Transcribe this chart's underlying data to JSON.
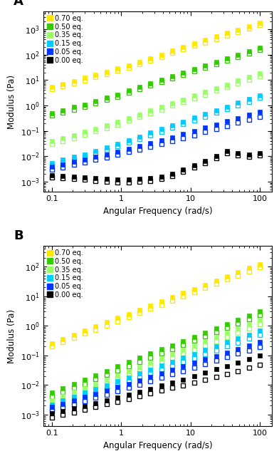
{
  "colors": {
    "0.70": "#FFE800",
    "0.50": "#33CC00",
    "0.35": "#99FF66",
    "0.15": "#00CCFF",
    "0.05": "#0033FF",
    "0.00": "#000000"
  },
  "labels": [
    "0.70 eq.",
    "0.50 eq.",
    "0.35 eq.",
    "0.15 eq.",
    "0.05 eq.",
    "0.00 eq."
  ],
  "freq_min": 0.1,
  "freq_max": 100,
  "n_points": 20,
  "panel_A": {
    "title": "A",
    "ylabel": "Modulus (Pa)",
    "xlabel": "Angular Frequency (rad/s)",
    "ylim": [
      0.0004,
      5000
    ],
    "series": {
      "0.70": {
        "G_prime": [
          5.5,
          7.0,
          9.0,
          12,
          16,
          21,
          28,
          38,
          52,
          72,
          100,
          140,
          195,
          270,
          370,
          510,
          700,
          960,
          1300,
          1800
        ],
        "G_dprime": [
          4.5,
          5.8,
          7.5,
          9.8,
          13,
          17,
          23,
          31,
          43,
          60,
          83,
          115,
          160,
          220,
          300,
          415,
          570,
          780,
          1060,
          1450
        ]
      },
      "0.50": {
        "G_prime": [
          0.5,
          0.65,
          0.85,
          1.1,
          1.5,
          2.0,
          2.7,
          3.8,
          5.2,
          7.2,
          10,
          14,
          19.5,
          27,
          38,
          52,
          72,
          100,
          138,
          190
        ],
        "G_dprime": [
          0.4,
          0.52,
          0.68,
          0.9,
          1.22,
          1.65,
          2.2,
          3.1,
          4.3,
          5.9,
          8.2,
          11.5,
          16,
          22,
          31,
          43,
          59,
          82,
          112,
          155
        ]
      },
      "0.35": {
        "G_prime": [
          0.04,
          0.052,
          0.068,
          0.09,
          0.12,
          0.165,
          0.23,
          0.32,
          0.44,
          0.62,
          0.87,
          1.22,
          1.72,
          2.4,
          3.4,
          4.8,
          6.7,
          9.3,
          13,
          18
        ],
        "G_dprime": [
          0.03,
          0.04,
          0.052,
          0.07,
          0.095,
          0.13,
          0.18,
          0.25,
          0.35,
          0.49,
          0.69,
          0.97,
          1.37,
          1.9,
          2.7,
          3.8,
          5.3,
          7.3,
          10,
          14
        ]
      },
      "0.15": {
        "G_prime": [
          0.0055,
          0.0072,
          0.0094,
          0.012,
          0.016,
          0.022,
          0.031,
          0.043,
          0.06,
          0.084,
          0.118,
          0.165,
          0.232,
          0.325,
          0.456,
          0.64,
          0.9,
          1.26,
          1.76,
          2.47
        ],
        "G_dprime": [
          0.0042,
          0.0055,
          0.0072,
          0.0095,
          0.013,
          0.018,
          0.025,
          0.034,
          0.048,
          0.067,
          0.094,
          0.132,
          0.185,
          0.26,
          0.365,
          0.51,
          0.72,
          1.01,
          1.41,
          1.97
        ]
      },
      "0.05": {
        "G_prime": [
          0.0038,
          0.0048,
          0.006,
          0.0075,
          0.0095,
          0.012,
          0.015,
          0.019,
          0.025,
          0.032,
          0.042,
          0.056,
          0.074,
          0.099,
          0.132,
          0.176,
          0.235,
          0.314,
          0.42,
          0.56
        ],
        "G_dprime": [
          0.003,
          0.0037,
          0.0046,
          0.0058,
          0.0073,
          0.0092,
          0.0117,
          0.0148,
          0.0188,
          0.024,
          0.031,
          0.04,
          0.052,
          0.068,
          0.09,
          0.118,
          0.156,
          0.207,
          0.274,
          0.36
        ]
      },
      "0.00": {
        "G_prime": [
          0.0018,
          0.0017,
          0.0016,
          0.00145,
          0.00135,
          0.00128,
          0.00124,
          0.00124,
          0.00128,
          0.0014,
          0.00162,
          0.0021,
          0.003,
          0.0044,
          0.0067,
          0.0105,
          0.0165,
          0.013,
          0.012,
          0.013
        ],
        "G_dprime": [
          0.0015,
          0.0014,
          0.0013,
          0.00118,
          0.00108,
          0.001,
          0.00096,
          0.00096,
          0.001,
          0.0011,
          0.0013,
          0.00168,
          0.0024,
          0.0036,
          0.0055,
          0.0086,
          0.0135,
          0.0107,
          0.0098,
          0.0107
        ]
      }
    }
  },
  "panel_B": {
    "title": "B",
    "ylabel": "Modulus (Pa)",
    "xlabel": "Angular Frequency (rad/s)",
    "ylim": [
      0.0004,
      500
    ],
    "series": {
      "0.70": {
        "G_prime": [
          0.26,
          0.36,
          0.5,
          0.69,
          0.95,
          1.32,
          1.82,
          2.52,
          3.48,
          4.81,
          6.65,
          9.19,
          12.7,
          17.6,
          24.3,
          33.6,
          46.4,
          64.1,
          88.6,
          122.5
        ],
        "G_dprime": [
          0.2,
          0.28,
          0.39,
          0.54,
          0.74,
          1.03,
          1.42,
          1.97,
          2.72,
          3.76,
          5.2,
          7.19,
          9.94,
          13.7,
          19.0,
          26.3,
          36.3,
          50.2,
          69.4,
          95.9
        ]
      },
      "0.50": {
        "G_prime": [
          0.0055,
          0.0077,
          0.0108,
          0.015,
          0.021,
          0.03,
          0.042,
          0.059,
          0.082,
          0.114,
          0.159,
          0.221,
          0.308,
          0.429,
          0.597,
          0.831,
          1.16,
          1.61,
          2.24,
          3.12
        ],
        "G_dprime": [
          0.004,
          0.0057,
          0.008,
          0.011,
          0.016,
          0.022,
          0.031,
          0.043,
          0.06,
          0.084,
          0.117,
          0.163,
          0.227,
          0.316,
          0.44,
          0.612,
          0.852,
          1.186,
          1.651,
          2.3
        ]
      },
      "0.35": {
        "G_prime": [
          0.003,
          0.0041,
          0.0057,
          0.0079,
          0.011,
          0.015,
          0.021,
          0.03,
          0.041,
          0.057,
          0.08,
          0.111,
          0.154,
          0.215,
          0.299,
          0.416,
          0.579,
          0.806,
          1.12,
          1.56
        ],
        "G_dprime": [
          0.0022,
          0.003,
          0.0042,
          0.0058,
          0.0081,
          0.0113,
          0.0157,
          0.022,
          0.03,
          0.042,
          0.059,
          0.082,
          0.114,
          0.158,
          0.22,
          0.307,
          0.426,
          0.593,
          0.825,
          1.15
        ]
      },
      "0.15": {
        "G_prime": [
          0.0022,
          0.003,
          0.004,
          0.0054,
          0.0073,
          0.0099,
          0.0134,
          0.0181,
          0.0245,
          0.033,
          0.045,
          0.061,
          0.082,
          0.111,
          0.151,
          0.204,
          0.276,
          0.374,
          0.506,
          0.685
        ],
        "G_dprime": [
          0.0016,
          0.0021,
          0.0029,
          0.0039,
          0.0053,
          0.0072,
          0.0098,
          0.0132,
          0.0179,
          0.0242,
          0.0328,
          0.044,
          0.06,
          0.081,
          0.11,
          0.149,
          0.201,
          0.272,
          0.368,
          0.498
        ]
      },
      "0.05": {
        "G_prime": [
          0.0018,
          0.0023,
          0.003,
          0.0039,
          0.005,
          0.0065,
          0.0085,
          0.011,
          0.014,
          0.019,
          0.025,
          0.032,
          0.042,
          0.056,
          0.073,
          0.096,
          0.126,
          0.165,
          0.216,
          0.283
        ],
        "G_dprime": [
          0.0013,
          0.0017,
          0.0022,
          0.0028,
          0.0037,
          0.0048,
          0.0062,
          0.008,
          0.0104,
          0.0135,
          0.0176,
          0.023,
          0.03,
          0.039,
          0.051,
          0.066,
          0.087,
          0.114,
          0.149,
          0.196
        ]
      },
      "0.00": {
        "G_prime": [
          0.0011,
          0.0013,
          0.0016,
          0.0019,
          0.0024,
          0.003,
          0.0037,
          0.0047,
          0.0059,
          0.0075,
          0.0095,
          0.012,
          0.015,
          0.02,
          0.026,
          0.034,
          0.044,
          0.058,
          0.076,
          0.099
        ],
        "G_dprime": [
          0.0008,
          0.00098,
          0.0012,
          0.00148,
          0.00182,
          0.00224,
          0.00276,
          0.0034,
          0.0042,
          0.0052,
          0.0065,
          0.008,
          0.0099,
          0.0123,
          0.0153,
          0.019,
          0.024,
          0.03,
          0.038,
          0.048
        ]
      }
    }
  }
}
